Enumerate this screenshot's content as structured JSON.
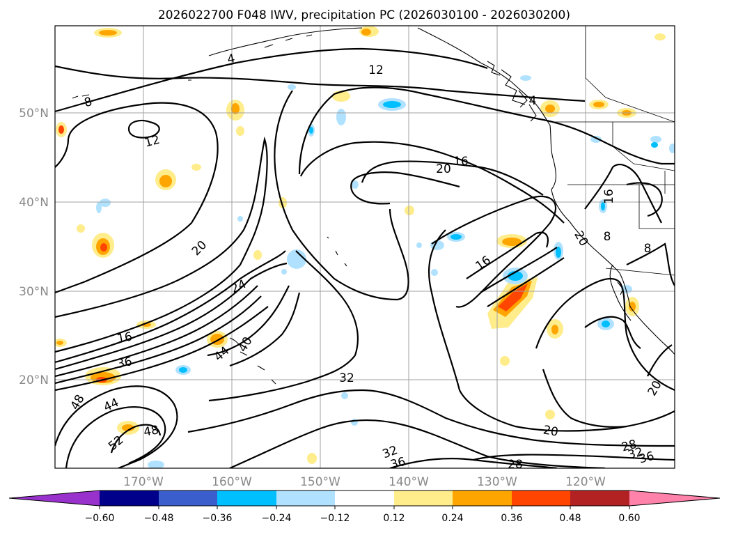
{
  "title": "2026022700 F048 IWV, precipitation PC (2026030100 - 2026030200)",
  "lat_ticks": [
    "50°N",
    "40°N",
    "30°N",
    "20°N"
  ],
  "lon_ticks": [
    "170°W",
    "160°W",
    "150°W",
    "140°W",
    "130°W",
    "120°W"
  ],
  "colorbar": {
    "colors": [
      "#9932cc",
      "#00008b",
      "#3a5fcd",
      "#00bfff",
      "#b0e2ff",
      "#ffffff",
      "#ffec8b",
      "#ffa500",
      "#ff4500",
      "#b22222",
      "#ff82ab"
    ],
    "tick_labels": [
      "−0.60",
      "−0.48",
      "−0.36",
      "−0.24",
      "−0.12",
      "0.12",
      "0.24",
      "0.36",
      "0.48",
      "0.60"
    ]
  },
  "contour_labels": [
    "12",
    "8",
    "4",
    "12",
    "16",
    "20",
    "4",
    "16",
    "8",
    "8",
    "20",
    "16",
    "24",
    "16",
    "36",
    "40",
    "44",
    "32",
    "48",
    "44",
    "52",
    "48",
    "20",
    "32",
    "36",
    "28",
    "28",
    "32",
    "36",
    "20",
    "20"
  ]
}
